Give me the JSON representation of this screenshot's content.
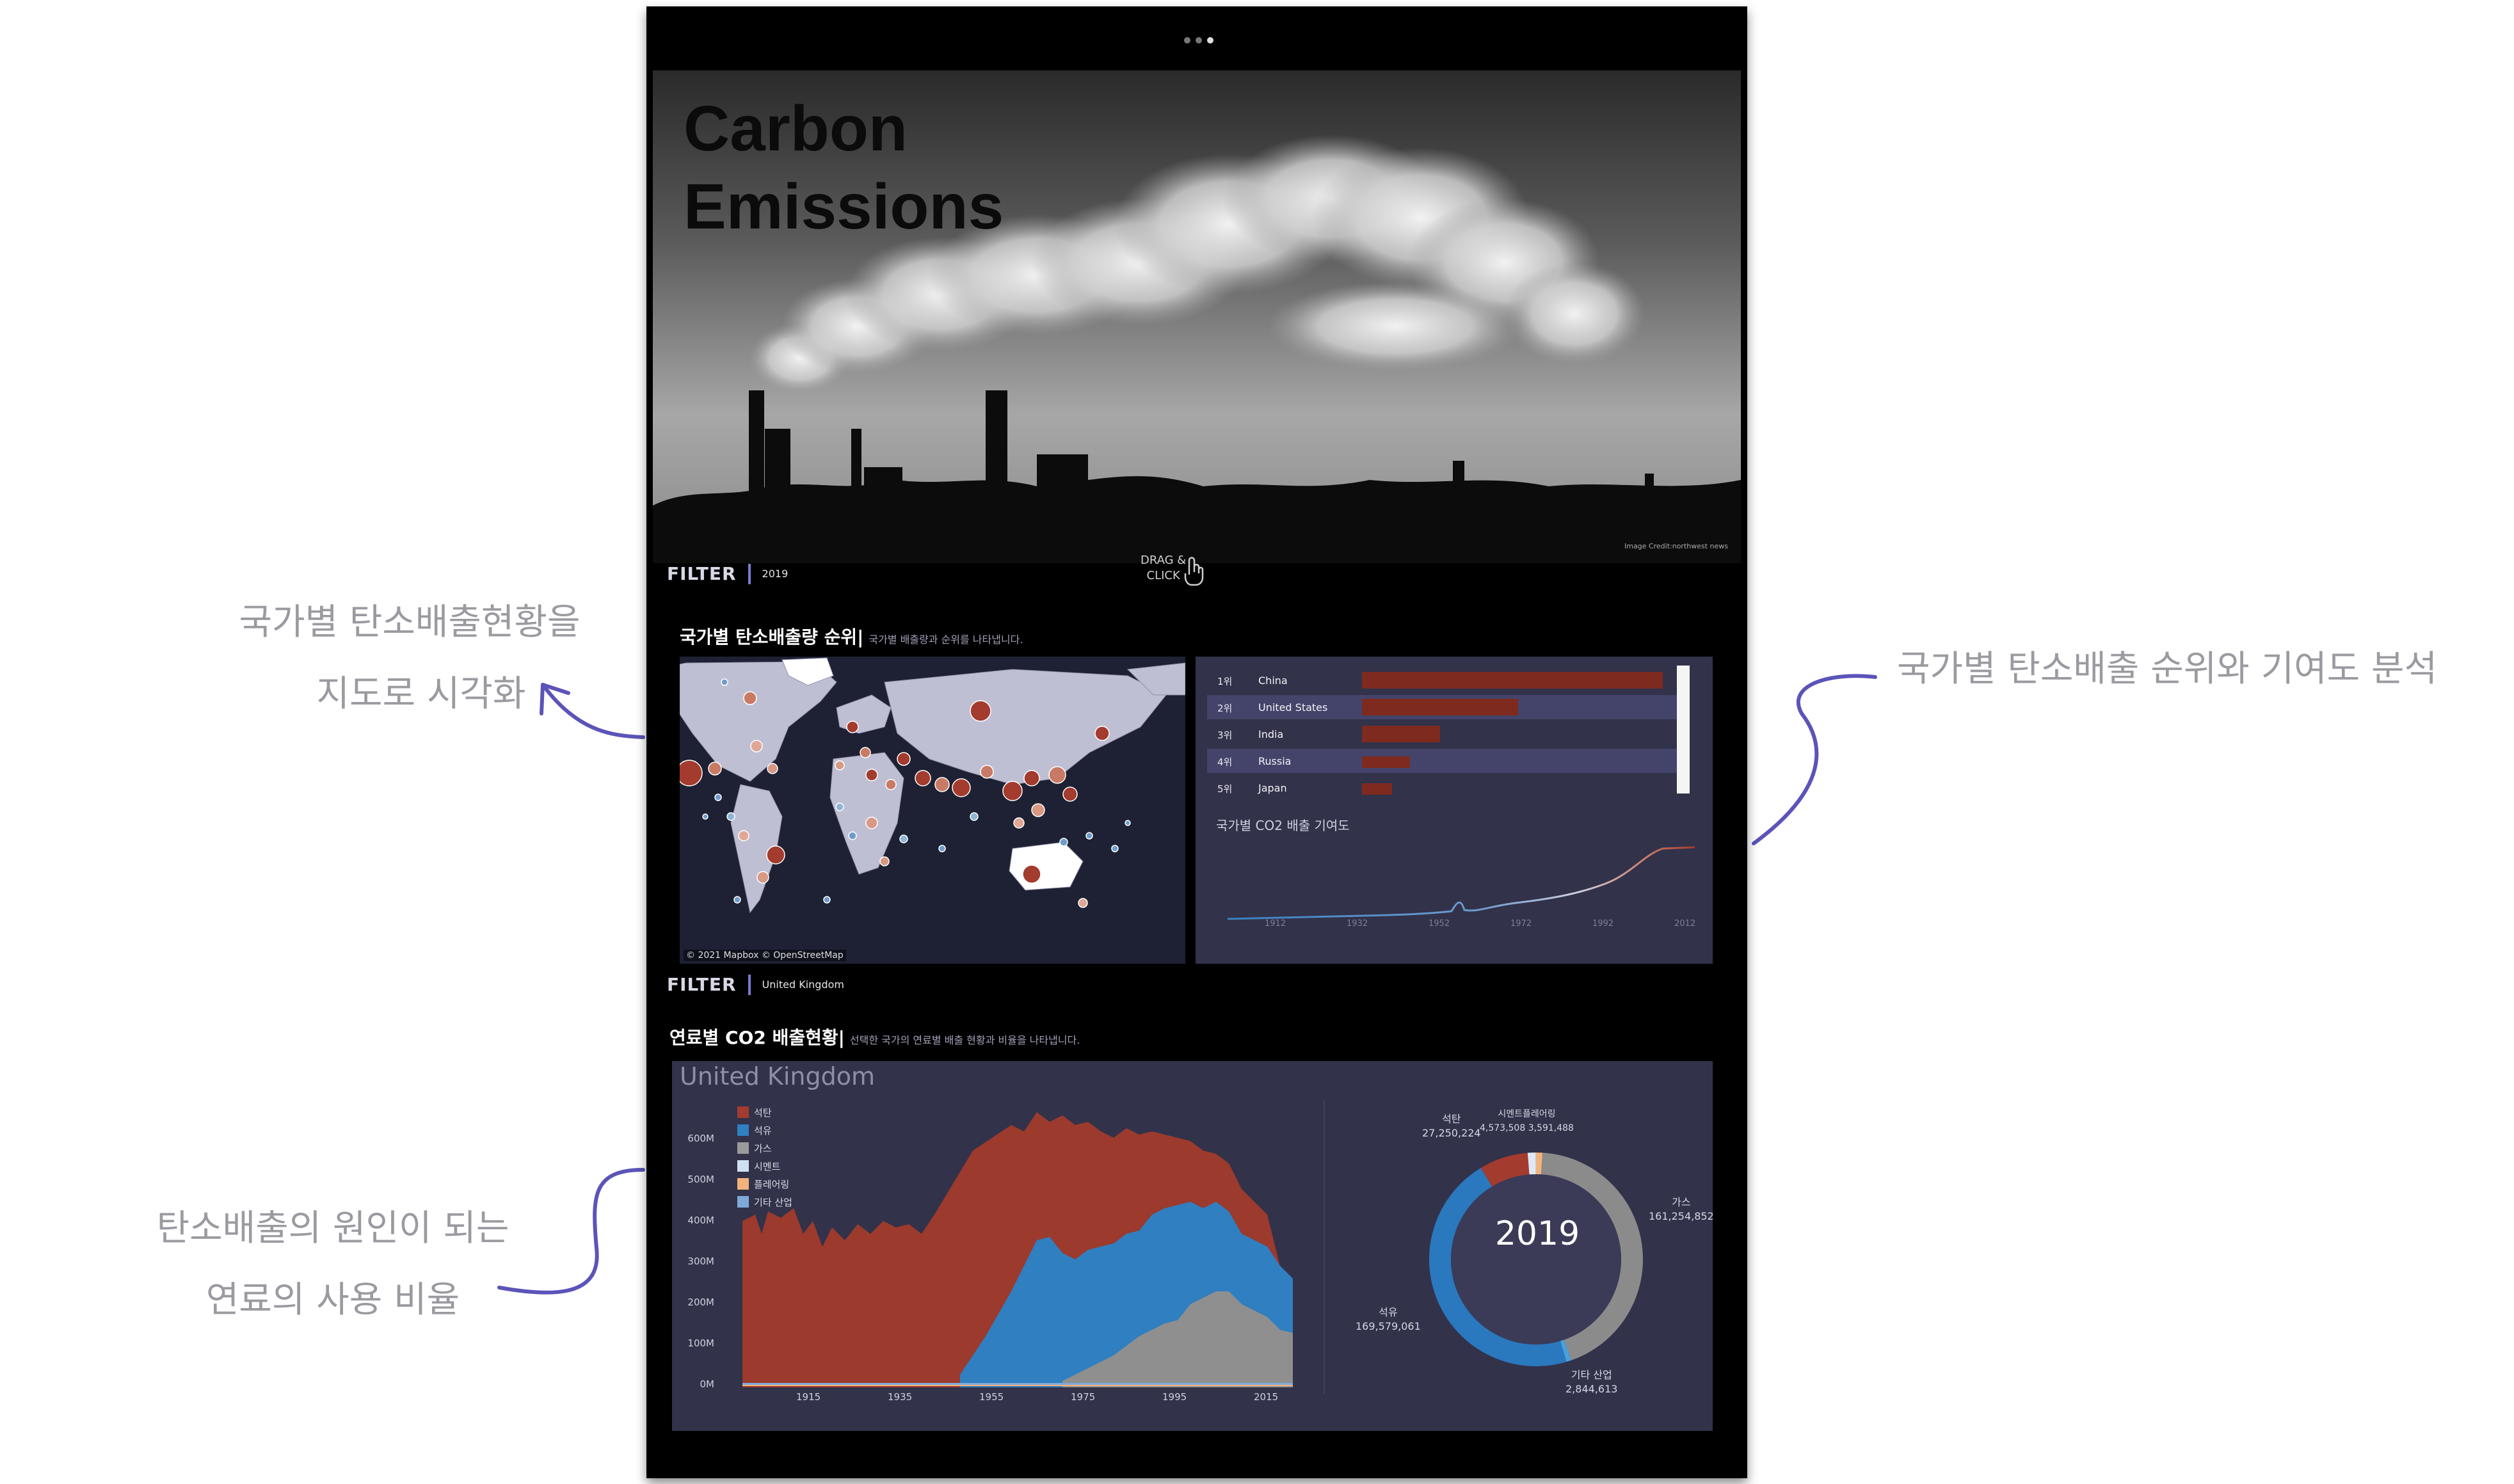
{
  "annotations": {
    "map_note": [
      "국가별 탄소배출현황을",
      "지도로 시각화"
    ],
    "rank_note": "국가별 탄소배출 순위와 기여도 분석",
    "fuel_note": [
      "탄소배출의 원인이 되는",
      "연료의 사용 비율"
    ],
    "arrow_color": "#5b54b8"
  },
  "hero": {
    "title_line1": "Carbon",
    "title_line2": "Emissions",
    "credit": "Image Credit:northwest news"
  },
  "filter1": {
    "label": "FILTER",
    "value": "2019"
  },
  "drag_hint": [
    "DRAG &",
    "CLICK"
  ],
  "section1": {
    "title": "국가별 탄소배출량 순위",
    "subtitle": "국가별 배출량과 순위를 나타냅니다."
  },
  "map": {
    "attribution": "© 2021 Mapbox © OpenStreetMap"
  },
  "ranking": {
    "rows": [
      {
        "rank": "1위",
        "country": "China",
        "value": 1.0
      },
      {
        "rank": "2위",
        "country": "United States",
        "value": 0.52
      },
      {
        "rank": "3위",
        "country": "India",
        "value": 0.26
      },
      {
        "rank": "4위",
        "country": "Russia",
        "value": 0.16
      },
      {
        "rank": "5위",
        "country": "Japan",
        "value": 0.1
      }
    ],
    "contribution_title": "국가별 CO2 배출 기여도",
    "x_ticks": [
      "1912",
      "1932",
      "1952",
      "1972",
      "1992",
      "2012"
    ]
  },
  "filter2": {
    "label": "FILTER",
    "value": "United Kingdom"
  },
  "section2": {
    "title": "연료별 CO2 배출현황",
    "subtitle": "선택한 국가의 연료별 배출 현황과 비율을 나타냅니다."
  },
  "fuel": {
    "country": "United Kingdom",
    "legend": [
      {
        "name": "석탄",
        "color": "#a33b2e"
      },
      {
        "name": "석유",
        "color": "#2f7fc1"
      },
      {
        "name": "가스",
        "color": "#9a9a9a"
      },
      {
        "name": "시멘트",
        "color": "#cfe0f4"
      },
      {
        "name": "플레어링",
        "color": "#f2b27d"
      },
      {
        "name": "기타 산업",
        "color": "#7fa9d8"
      }
    ],
    "y_ticks": [
      "600M",
      "500M",
      "400M",
      "300M",
      "200M",
      "100M",
      "0M"
    ],
    "x_ticks": [
      "1915",
      "1935",
      "1955",
      "1975",
      "1995",
      "2015"
    ],
    "donut": {
      "year": "2019",
      "slices": [
        {
          "name": "가스",
          "value": 161254852,
          "color": "#8b8b8b"
        },
        {
          "name": "기타 산업",
          "value": 2844613,
          "color": "#4aa0d8"
        },
        {
          "name": "석유",
          "value": 169579061,
          "color": "#2a78be"
        },
        {
          "name": "석탄",
          "value": 27250224,
          "color": "#a33b2e"
        },
        {
          "name": "시멘트",
          "value": 4573508,
          "color": "#dfe8f5"
        },
        {
          "name": "플레어링",
          "value": 3591488,
          "color": "#f2b27d"
        }
      ],
      "labels": {
        "gas": [
          "가스",
          "161,254,852"
        ],
        "other": [
          "기타 산업",
          "2,844,613"
        ],
        "oil": [
          "석유",
          "169,579,061"
        ],
        "coal": [
          "석탄",
          "27,250,224"
        ],
        "cement_flaring": [
          "시멘트플레어링",
          "4,573,508 3,591,488"
        ]
      }
    }
  }
}
